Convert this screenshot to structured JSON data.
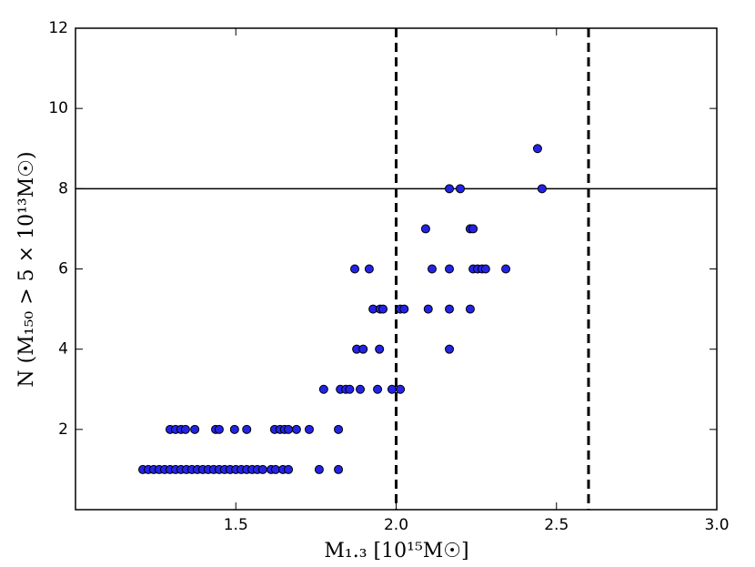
{
  "chart_data": {
    "type": "scatter",
    "x_label": "M₁.₃  [10¹⁵M☉]",
    "y_label": "N  (M₁₅₀ > 5 × 10¹³M☉)",
    "x": [
      1.21,
      1.227,
      1.244,
      1.261,
      1.278,
      1.295,
      1.312,
      1.329,
      1.346,
      1.363,
      1.38,
      1.397,
      1.414,
      1.431,
      1.448,
      1.465,
      1.482,
      1.5,
      1.517,
      1.534,
      1.551,
      1.567,
      1.584,
      1.61,
      1.624,
      1.647,
      1.664,
      1.76,
      1.82,
      1.295,
      1.312,
      1.329,
      1.343,
      1.372,
      1.437,
      1.448,
      1.496,
      1.534,
      1.621,
      1.638,
      1.652,
      1.664,
      1.689,
      1.729,
      1.82,
      1.774,
      1.826,
      1.843,
      1.855,
      1.888,
      1.942,
      1.987,
      2.013,
      1.877,
      1.897,
      1.948,
      2.166,
      1.928,
      1.95,
      1.959,
      2.013,
      2.025,
      2.1,
      2.166,
      2.231,
      1.871,
      1.916,
      2.112,
      2.166,
      2.24,
      2.254,
      2.268,
      2.279,
      2.342,
      2.092,
      2.231,
      2.24,
      2.166,
      2.2,
      2.455,
      2.441
    ],
    "values": [
      1,
      1,
      1,
      1,
      1,
      1,
      1,
      1,
      1,
      1,
      1,
      1,
      1,
      1,
      1,
      1,
      1,
      1,
      1,
      1,
      1,
      1,
      1,
      1,
      1,
      1,
      1,
      1,
      1,
      2,
      2,
      2,
      2,
      2,
      2,
      2,
      2,
      2,
      2,
      2,
      2,
      2,
      2,
      2,
      2,
      3,
      3,
      3,
      3,
      3,
      3,
      3,
      3,
      4,
      4,
      4,
      4,
      5,
      5,
      5,
      5,
      5,
      5,
      5,
      5,
      6,
      6,
      6,
      6,
      6,
      6,
      6,
      6,
      6,
      7,
      7,
      7,
      8,
      8,
      8,
      9
    ],
    "color": "#2323e6",
    "xlim": [
      1.0,
      3.0
    ],
    "ylim": [
      0,
      12
    ],
    "xticks": [
      1.5,
      {
        "value": 2.0,
        "label": "2.0"
      },
      2.5,
      {
        "value": 3.0,
        "label": "3.0"
      }
    ],
    "yticks": [
      2,
      4,
      6,
      8,
      10,
      12
    ],
    "vlines": [
      2.0,
      2.6
    ],
    "hline": 8
  }
}
